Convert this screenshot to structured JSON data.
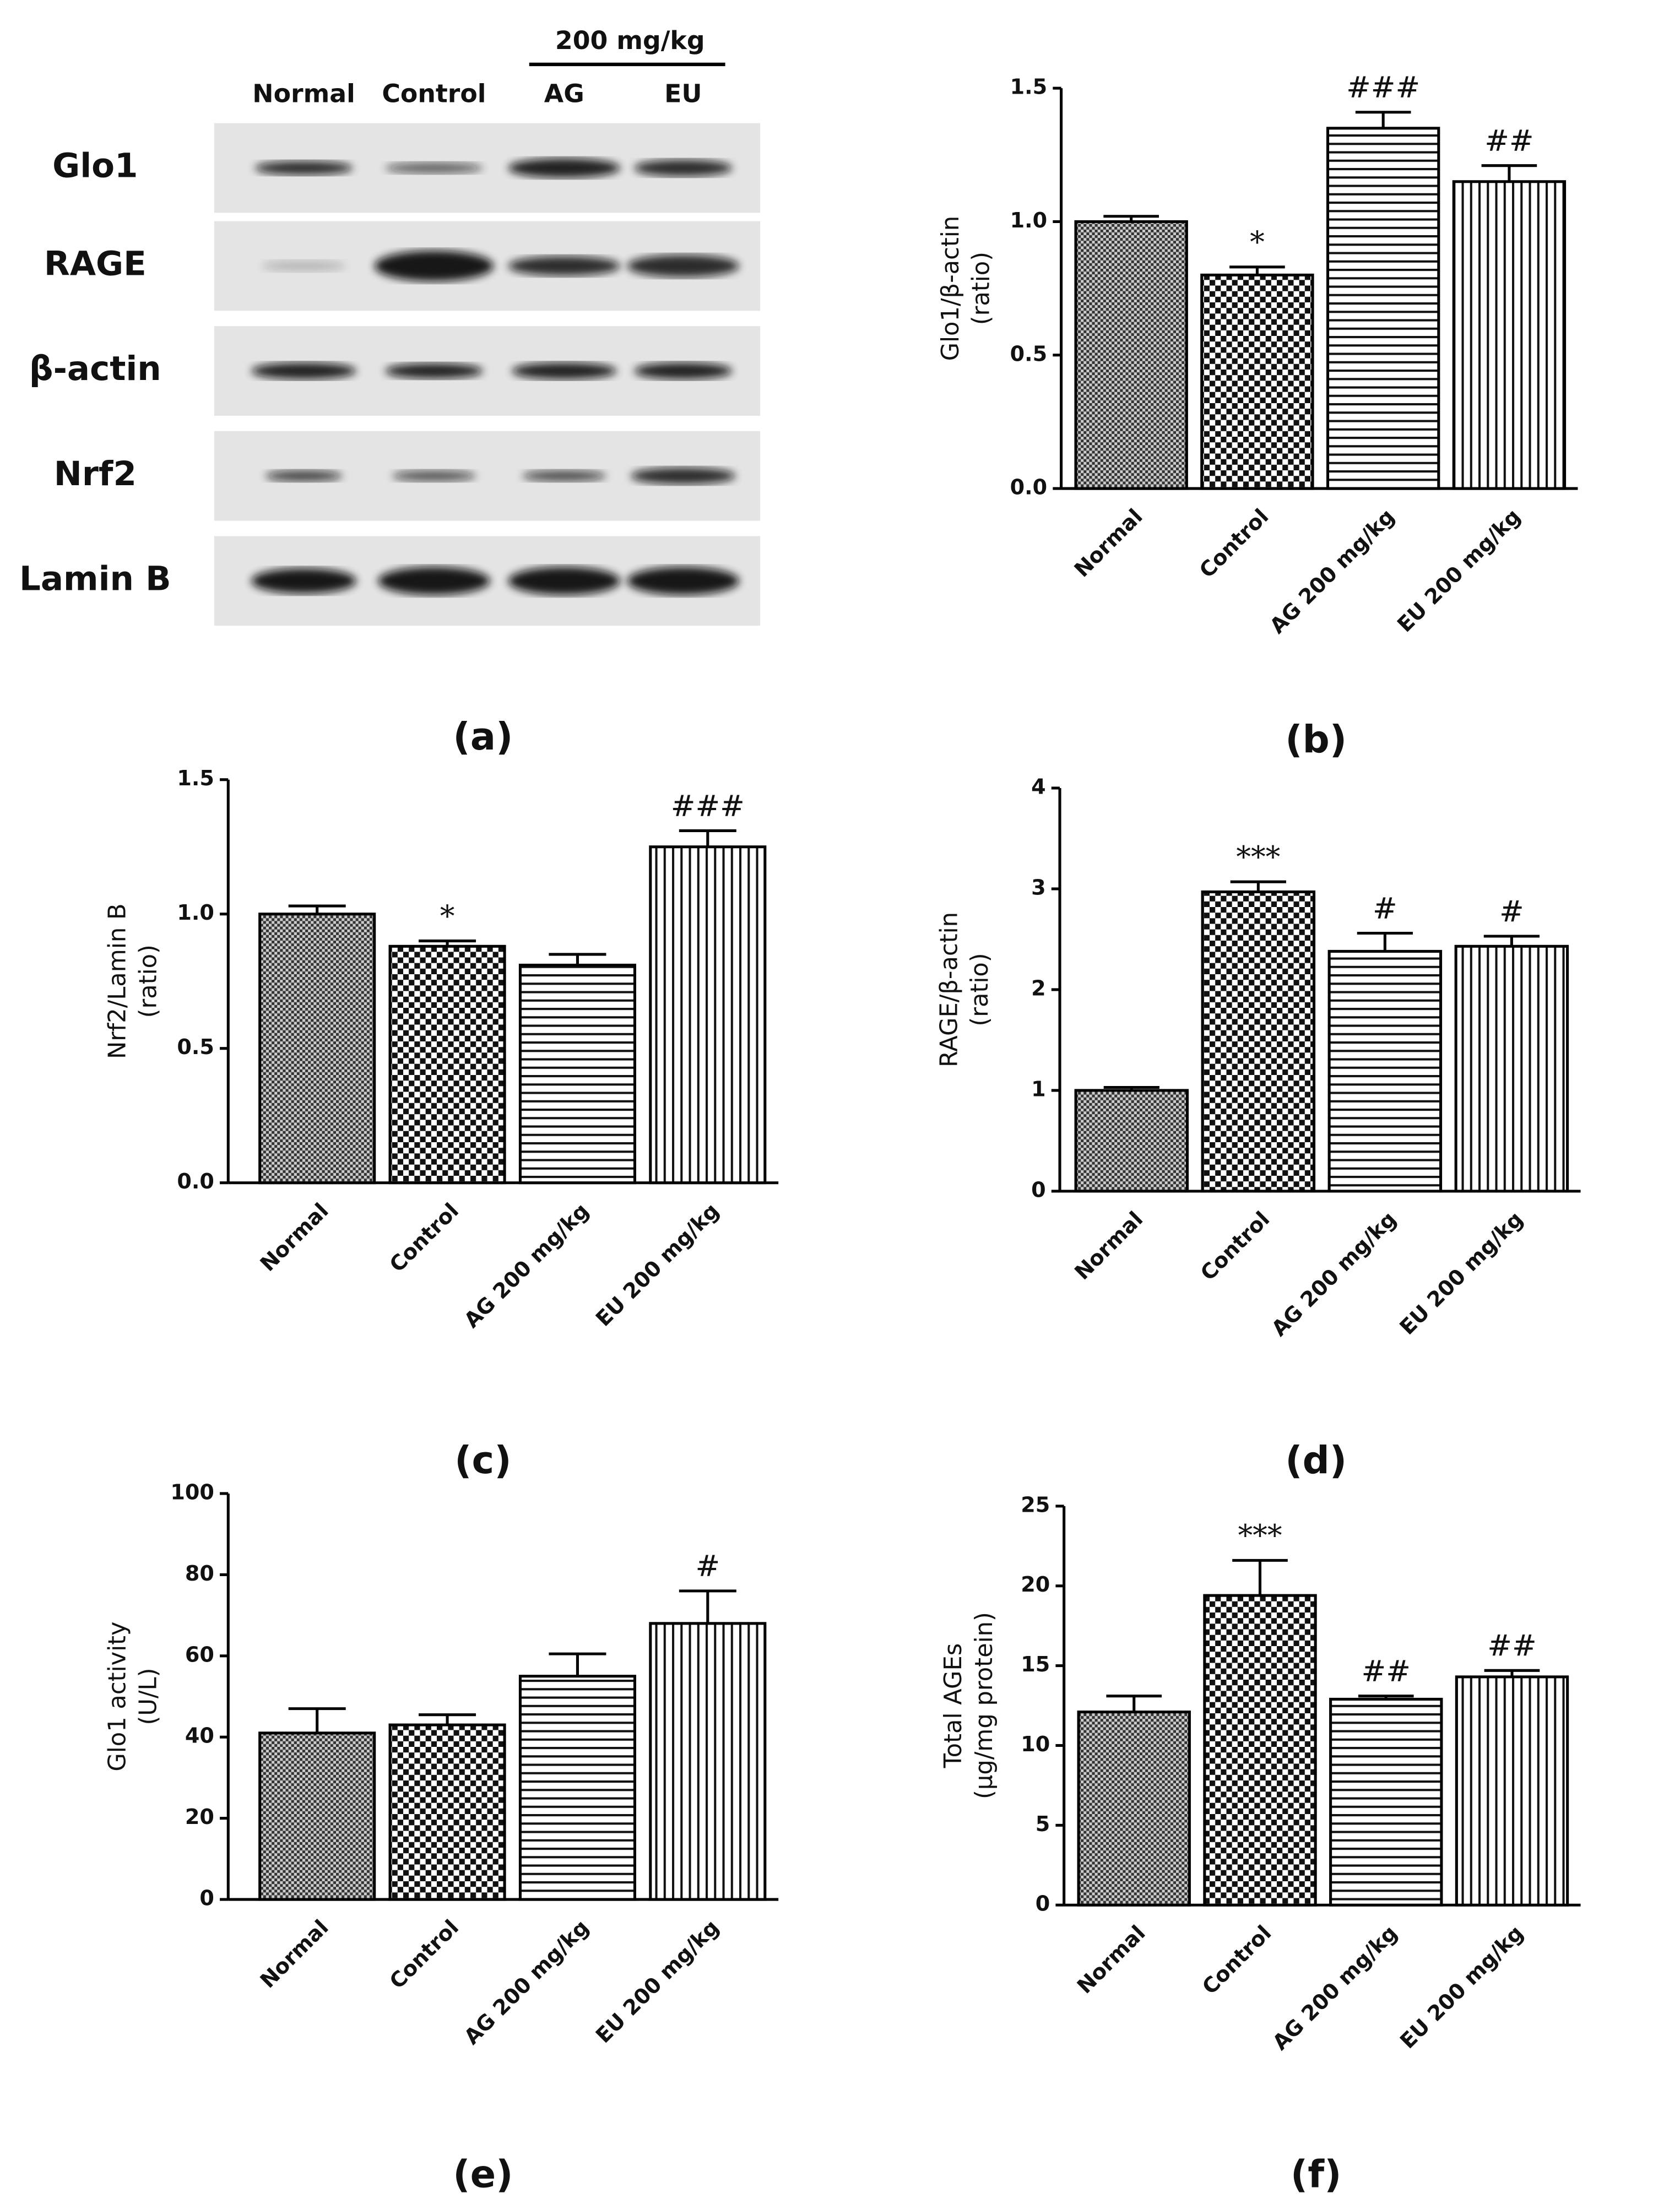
{
  "blot": {
    "group_label": "200 mg/kg",
    "lanes": [
      "Normal",
      "Control",
      "AG",
      "EU"
    ],
    "rows": [
      "Glo1",
      "RAGE",
      "β-actin",
      "Nrf2",
      "Lamin B"
    ],
    "panel_label": "(a)"
  },
  "chart_data": [
    {
      "type": "bar",
      "panel_label": "(b)",
      "ylabel": [
        "Glo1/β-actin",
        "(ratio)"
      ],
      "categories": [
        "Normal",
        "Control",
        "AG 200 mg/kg",
        "EU 200 mg/kg"
      ],
      "values": [
        1.0,
        0.8,
        1.35,
        1.15
      ],
      "errors": [
        0.02,
        0.03,
        0.06,
        0.06
      ],
      "annotations": [
        null,
        "*",
        "###",
        "##"
      ],
      "patterns": [
        "crosshatch",
        "checker",
        "horizontal",
        "vertical"
      ],
      "ylim": [
        0,
        1.5
      ],
      "yticks": [
        {
          "value": 0,
          "label": "0.0"
        },
        0.5,
        {
          "value": 1,
          "label": "1.0"
        },
        1.5
      ]
    },
    {
      "type": "bar",
      "panel_label": "(c)",
      "ylabel": [
        "Nrf2/Lamin B",
        "(ratio)"
      ],
      "categories": [
        "Normal",
        "Control",
        "AG 200 mg/kg",
        "EU 200 mg/kg"
      ],
      "values": [
        1.0,
        0.88,
        0.81,
        1.25
      ],
      "errors": [
        0.03,
        0.02,
        0.04,
        0.06
      ],
      "annotations": [
        null,
        "*",
        null,
        "###"
      ],
      "patterns": [
        "crosshatch",
        "checker",
        "horizontal",
        "vertical"
      ],
      "ylim": [
        0,
        1.5
      ],
      "yticks": [
        {
          "value": 0,
          "label": "0.0"
        },
        0.5,
        {
          "value": 1,
          "label": "1.0"
        },
        1.5
      ]
    },
    {
      "type": "bar",
      "panel_label": "(d)",
      "ylabel": [
        "RAGE/β-actin",
        "(ratio)"
      ],
      "categories": [
        "Normal",
        "Control",
        "AG 200 mg/kg",
        "EU 200 mg/kg"
      ],
      "values": [
        1.0,
        2.97,
        2.38,
        2.43
      ],
      "errors": [
        0.03,
        0.1,
        0.18,
        0.1
      ],
      "annotations": [
        null,
        "***",
        "#",
        "#"
      ],
      "patterns": [
        "crosshatch",
        "checker",
        "horizontal",
        "vertical"
      ],
      "ylim": [
        0,
        4
      ],
      "yticks": [
        0,
        1,
        2,
        3,
        4
      ]
    },
    {
      "type": "bar",
      "panel_label": "(e)",
      "ylabel": [
        "Glo1 activity",
        "(U/L)"
      ],
      "categories": [
        "Normal",
        "Control",
        "AG 200 mg/kg",
        "EU 200 mg/kg"
      ],
      "values": [
        41,
        43,
        55,
        68
      ],
      "errors": [
        6,
        2.5,
        5.5,
        8
      ],
      "annotations": [
        null,
        null,
        null,
        "#"
      ],
      "patterns": [
        "crosshatch",
        "checker",
        "horizontal",
        "vertical"
      ],
      "ylim": [
        0,
        100
      ],
      "yticks": [
        0,
        20,
        40,
        60,
        80,
        100
      ]
    },
    {
      "type": "bar",
      "panel_label": "(f)",
      "ylabel": [
        "Total AGEs",
        "(μg/mg protein)"
      ],
      "categories": [
        "Normal",
        "Control",
        "AG 200 mg/kg",
        "EU 200 mg/kg"
      ],
      "values": [
        12.1,
        19.4,
        12.9,
        14.3
      ],
      "errors": [
        1,
        2.2,
        0.2,
        0.4
      ],
      "annotations": [
        null,
        "***",
        "##",
        "##"
      ],
      "patterns": [
        "crosshatch",
        "checker",
        "horizontal",
        "vertical"
      ],
      "ylim": [
        0,
        25
      ],
      "yticks": [
        0,
        5,
        10,
        15,
        20,
        25
      ]
    }
  ]
}
